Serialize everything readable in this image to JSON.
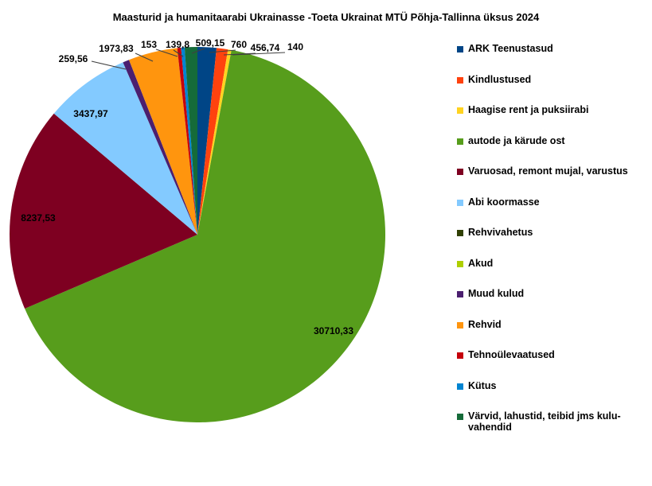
{
  "title": "Maasturid ja humanitaarabi Ukrainasse -Toeta Ukrainat MTÜ Põhja-Tallinna üksus 2024",
  "chart_data": {
    "type": "pie",
    "title": "Maasturid ja humanitaarabi Ukrainasse -Toeta Ukrainat MTÜ Põhja-Tallinna üksus 2024",
    "legend_position": "right",
    "start_angle": "12-o-clock",
    "direction": "clockwise",
    "categories": [
      "ARK Teenustasud",
      "Kindlustused",
      "Haagise rent ja puksiirabi",
      "autode ja kärude ost",
      "Varuosad, remont mujal, varustus",
      "Abi koormasse",
      "Rehvivahetus",
      "Akud",
      "Muud kulud",
      "Rehvid",
      "Tehnoülevaatused",
      "Kütus",
      "Värvid, lahustid, teibid jms kulu-\nvahendid"
    ],
    "values": [
      760,
      456.74,
      140,
      30710.33,
      8237.53,
      3437.97,
      null,
      null,
      259.56,
      1973.83,
      153,
      139.8,
      509.15
    ],
    "labels": [
      "760",
      "456,74",
      "140",
      "30710,33",
      "8237,53",
      "3437,97",
      null,
      null,
      "259,56",
      "1973,83",
      "153",
      "139,8",
      "509,15"
    ],
    "colors": [
      "#004586",
      "#FF420E",
      "#FFD320",
      "#579D1C",
      "#7E0021",
      "#83CAFF",
      "#314004",
      "#AECF00",
      "#4B1F6F",
      "#FF950E",
      "#C5000B",
      "#0084D1",
      "#156B39"
    ],
    "total": 46777.91
  }
}
